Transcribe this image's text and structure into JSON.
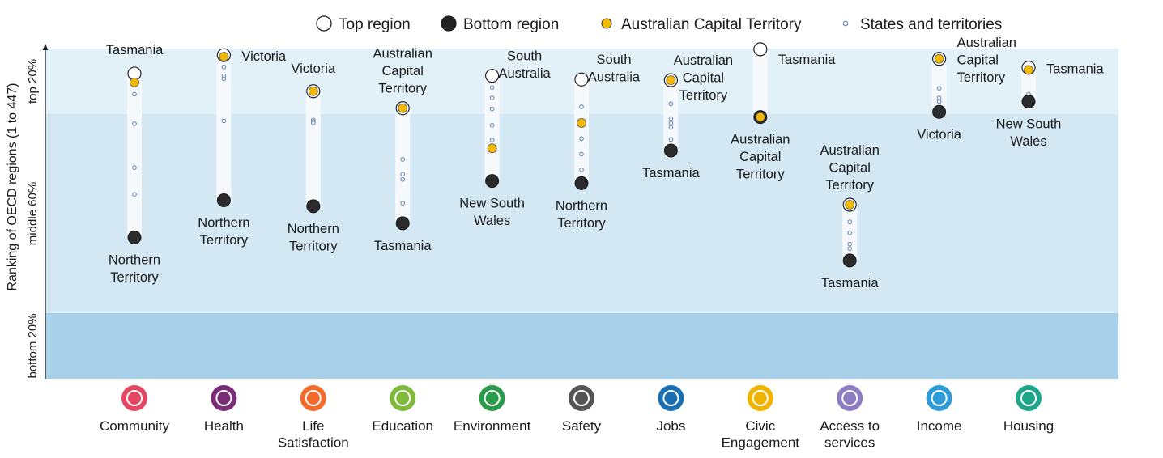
{
  "chart_data": {
    "type": "scatter",
    "ylabel": "Ranking of OECD regions (1 to 447)",
    "y_bands": [
      "top 20%",
      "middle 60%",
      "bottom 20%"
    ],
    "legend": {
      "position": "top",
      "items": [
        {
          "key": "top",
          "label": "Top region",
          "color": "#ffffff"
        },
        {
          "key": "bottom",
          "label": "Bottom region",
          "color": "#222222"
        },
        {
          "key": "act",
          "label": "Australian Capital Territory",
          "color": "#f5b800"
        },
        {
          "key": "states",
          "label": "States and territories",
          "color": "#ffffff"
        }
      ]
    },
    "band_colors": [
      "#e2f0f8",
      "#d3e8f3",
      "#a8d0e8"
    ],
    "categories": [
      {
        "name": "Community",
        "icon": "community-icon",
        "icon_color": "#e44661",
        "top_label": "Tasmania",
        "bottom_label": "Northern Territory",
        "top": 34,
        "bottom": 255,
        "act": 46,
        "states": [
          62,
          102,
          161,
          197
        ]
      },
      {
        "name": "Health",
        "icon": "health-icon",
        "icon_color": "#7b2c77",
        "top_label": "Victoria",
        "bottom_label": "Northern Territory",
        "top": 9,
        "bottom": 205,
        "act": 11,
        "states": [
          25,
          37,
          41,
          98
        ]
      },
      {
        "name": "Life Satisfaction",
        "icon": "life-satisfaction-icon",
        "icon_color": "#f26b2d",
        "top_label": "Victoria",
        "bottom_label": "Northern Territory",
        "top": 58,
        "bottom": 213,
        "act": 58,
        "states": [
          97,
          99,
          101
        ]
      },
      {
        "name": "Education",
        "icon": "education-icon",
        "icon_color": "#7fba3d",
        "top_label": "Australian Capital Territory",
        "bottom_label": "Tasmania",
        "top": 81,
        "bottom": 236,
        "act": 81,
        "states": [
          150,
          170,
          177,
          209
        ]
      },
      {
        "name": "Environment",
        "icon": "environment-icon",
        "icon_color": "#2a9a4b",
        "top_label": "South Australia",
        "bottom_label": "New South Wales",
        "top": 37,
        "bottom": 179,
        "act": 135,
        "states": [
          53,
          67,
          82,
          104,
          124
        ]
      },
      {
        "name": "Safety",
        "icon": "safety-icon",
        "icon_color": "#555555",
        "top_label": "South Australia",
        "bottom_label": "Northern Territory",
        "top": 42,
        "bottom": 182,
        "act": 101,
        "states": [
          79,
          122,
          143,
          164
        ]
      },
      {
        "name": "Jobs",
        "icon": "jobs-icon",
        "icon_color": "#1a6fb3",
        "top_label": "Australian Capital Territory",
        "bottom_label": "Tasmania",
        "top": 43,
        "bottom": 138,
        "act": 43,
        "states": [
          75,
          95,
          101,
          107,
          123
        ]
      },
      {
        "name": "Civic Engagement",
        "icon": "civic-engagement-icon",
        "icon_color": "#f0b400",
        "top_label": "Tasmania",
        "bottom_label": "Australian Capital Territory",
        "top": 1,
        "bottom": 93,
        "act": 93,
        "states": []
      },
      {
        "name": "Access to services",
        "icon": "access-to-services-icon",
        "icon_color": "#8e7cc3",
        "top_label": "Australian Capital Territory",
        "bottom_label": "Tasmania",
        "top": 211,
        "bottom": 286,
        "act": 211,
        "states": [
          234,
          249,
          264,
          270
        ]
      },
      {
        "name": "Income",
        "icon": "income-icon",
        "icon_color": "#2e9bd6",
        "top_label": "Australian Capital Territory",
        "bottom_label": "Victoria",
        "top": 14,
        "bottom": 86,
        "act": 14,
        "states": [
          54,
          67,
          72
        ]
      },
      {
        "name": "Housing",
        "icon": "housing-icon",
        "icon_color": "#20a58a",
        "top_label": "Tasmania",
        "bottom_label": "New South Wales",
        "top": 26,
        "bottom": 72,
        "act": 29,
        "states": [
          62,
          68
        ]
      }
    ]
  }
}
